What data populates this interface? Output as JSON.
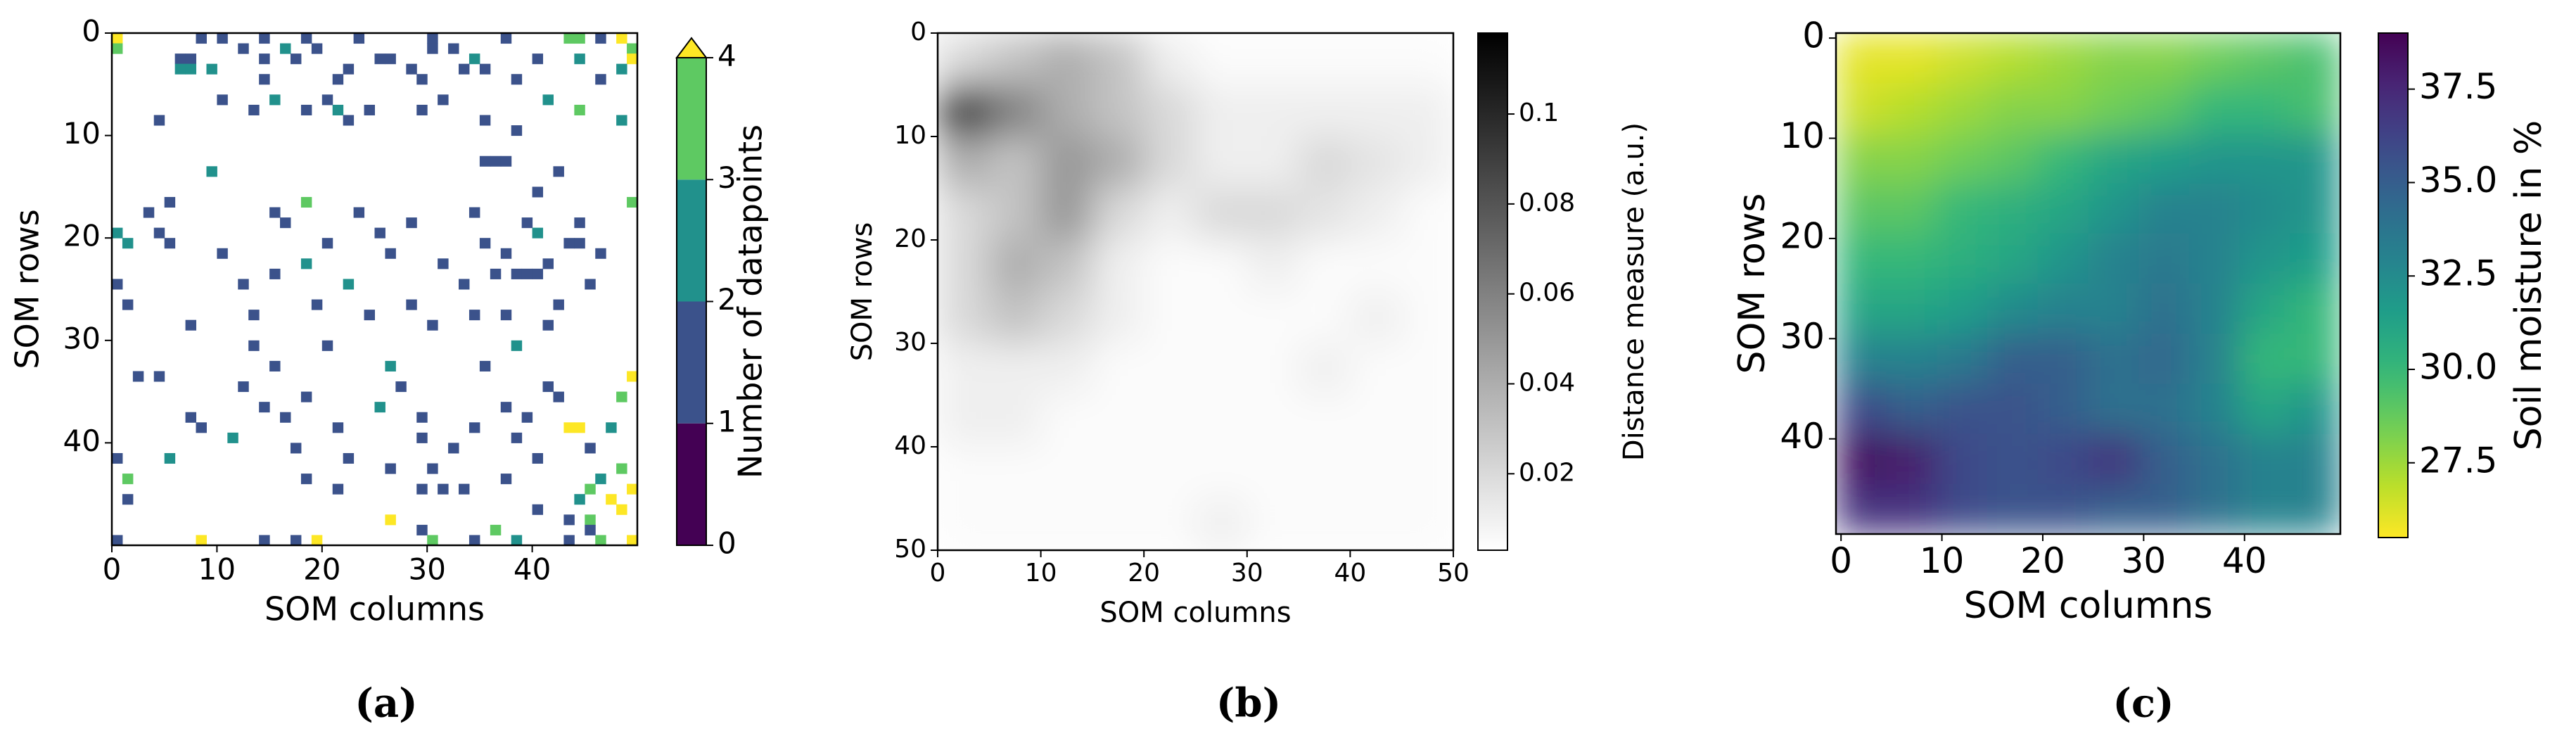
{
  "chart_data": [
    {
      "type": "heatmap-count",
      "caption": "(a)",
      "xlabel": "SOM columns",
      "ylabel": "SOM rows",
      "clabel": "Number of datapoints",
      "xlim": [
        0,
        50
      ],
      "ylim": [
        50,
        0
      ],
      "xticks": [
        0,
        10,
        20,
        30,
        40
      ],
      "yticks": [
        0,
        10,
        20,
        30,
        40
      ],
      "clim": [
        0,
        4
      ],
      "cticks": [
        0,
        1,
        2,
        3,
        4
      ],
      "colors": [
        "#440154",
        "#3b528b",
        "#21918c",
        "#5ec962",
        "#fde725"
      ],
      "cells": [
        [
          0,
          0,
          4
        ],
        [
          0,
          8,
          1
        ],
        [
          0,
          10,
          1
        ],
        [
          0,
          14,
          1
        ],
        [
          0,
          18,
          1
        ],
        [
          0,
          23,
          1
        ],
        [
          0,
          30,
          1
        ],
        [
          0,
          37,
          1
        ],
        [
          0,
          43,
          3
        ],
        [
          0,
          44,
          3
        ],
        [
          0,
          46,
          1
        ],
        [
          0,
          48,
          4
        ],
        [
          1,
          0,
          3
        ],
        [
          1,
          12,
          1
        ],
        [
          1,
          16,
          2
        ],
        [
          1,
          19,
          1
        ],
        [
          1,
          30,
          1
        ],
        [
          1,
          32,
          1
        ],
        [
          1,
          49,
          3
        ],
        [
          2,
          6,
          1
        ],
        [
          2,
          7,
          1
        ],
        [
          2,
          14,
          1
        ],
        [
          2,
          17,
          1
        ],
        [
          2,
          25,
          1
        ],
        [
          2,
          26,
          1
        ],
        [
          2,
          34,
          2
        ],
        [
          2,
          40,
          1
        ],
        [
          2,
          44,
          2
        ],
        [
          2,
          49,
          4
        ],
        [
          3,
          6,
          2
        ],
        [
          3,
          7,
          2
        ],
        [
          3,
          9,
          2
        ],
        [
          3,
          22,
          1
        ],
        [
          3,
          28,
          1
        ],
        [
          3,
          33,
          1
        ],
        [
          3,
          35,
          1
        ],
        [
          3,
          48,
          2
        ],
        [
          4,
          14,
          1
        ],
        [
          4,
          21,
          1
        ],
        [
          4,
          29,
          1
        ],
        [
          4,
          38,
          1
        ],
        [
          4,
          46,
          1
        ],
        [
          6,
          10,
          1
        ],
        [
          6,
          15,
          2
        ],
        [
          6,
          20,
          1
        ],
        [
          6,
          31,
          1
        ],
        [
          6,
          41,
          2
        ],
        [
          7,
          13,
          1
        ],
        [
          7,
          18,
          1
        ],
        [
          7,
          21,
          2
        ],
        [
          7,
          24,
          1
        ],
        [
          7,
          29,
          1
        ],
        [
          7,
          44,
          3
        ],
        [
          8,
          4,
          1
        ],
        [
          8,
          22,
          1
        ],
        [
          8,
          35,
          1
        ],
        [
          8,
          48,
          2
        ],
        [
          9,
          38,
          1
        ],
        [
          12,
          35,
          1
        ],
        [
          12,
          36,
          1
        ],
        [
          12,
          37,
          1
        ],
        [
          13,
          9,
          2
        ],
        [
          13,
          42,
          1
        ],
        [
          15,
          40,
          1
        ],
        [
          16,
          5,
          1
        ],
        [
          16,
          18,
          3
        ],
        [
          16,
          49,
          3
        ],
        [
          17,
          3,
          1
        ],
        [
          17,
          15,
          1
        ],
        [
          17,
          23,
          1
        ],
        [
          17,
          34,
          1
        ],
        [
          18,
          16,
          1
        ],
        [
          18,
          28,
          1
        ],
        [
          18,
          39,
          1
        ],
        [
          18,
          44,
          1
        ],
        [
          19,
          0,
          2
        ],
        [
          19,
          4,
          1
        ],
        [
          19,
          25,
          1
        ],
        [
          19,
          40,
          2
        ],
        [
          20,
          1,
          2
        ],
        [
          20,
          5,
          1
        ],
        [
          20,
          20,
          1
        ],
        [
          20,
          35,
          1
        ],
        [
          20,
          43,
          1
        ],
        [
          20,
          44,
          1
        ],
        [
          21,
          10,
          1
        ],
        [
          21,
          26,
          1
        ],
        [
          21,
          37,
          1
        ],
        [
          21,
          46,
          1
        ],
        [
          22,
          18,
          2
        ],
        [
          22,
          31,
          1
        ],
        [
          22,
          41,
          1
        ],
        [
          23,
          15,
          1
        ],
        [
          23,
          36,
          1
        ],
        [
          23,
          38,
          1
        ],
        [
          23,
          39,
          1
        ],
        [
          23,
          40,
          1
        ],
        [
          24,
          0,
          1
        ],
        [
          24,
          12,
          1
        ],
        [
          24,
          22,
          2
        ],
        [
          24,
          33,
          1
        ],
        [
          24,
          45,
          1
        ],
        [
          26,
          1,
          1
        ],
        [
          26,
          19,
          1
        ],
        [
          26,
          28,
          1
        ],
        [
          26,
          42,
          1
        ],
        [
          27,
          13,
          1
        ],
        [
          27,
          24,
          1
        ],
        [
          27,
          34,
          1
        ],
        [
          27,
          37,
          1
        ],
        [
          28,
          7,
          1
        ],
        [
          28,
          30,
          1
        ],
        [
          28,
          41,
          1
        ],
        [
          30,
          13,
          1
        ],
        [
          30,
          20,
          1
        ],
        [
          30,
          38,
          2
        ],
        [
          32,
          15,
          1
        ],
        [
          32,
          26,
          2
        ],
        [
          32,
          35,
          1
        ],
        [
          33,
          2,
          1
        ],
        [
          33,
          4,
          1
        ],
        [
          33,
          49,
          4
        ],
        [
          34,
          12,
          1
        ],
        [
          34,
          27,
          1
        ],
        [
          34,
          41,
          1
        ],
        [
          35,
          18,
          1
        ],
        [
          35,
          42,
          1
        ],
        [
          35,
          48,
          3
        ],
        [
          36,
          14,
          1
        ],
        [
          36,
          25,
          2
        ],
        [
          36,
          37,
          1
        ],
        [
          37,
          7,
          1
        ],
        [
          37,
          16,
          1
        ],
        [
          37,
          29,
          1
        ],
        [
          37,
          39,
          1
        ],
        [
          38,
          8,
          1
        ],
        [
          38,
          21,
          1
        ],
        [
          38,
          34,
          1
        ],
        [
          38,
          43,
          4
        ],
        [
          38,
          44,
          4
        ],
        [
          38,
          47,
          2
        ],
        [
          39,
          11,
          2
        ],
        [
          39,
          29,
          1
        ],
        [
          39,
          38,
          1
        ],
        [
          40,
          17,
          1
        ],
        [
          40,
          32,
          1
        ],
        [
          40,
          45,
          1
        ],
        [
          41,
          0,
          1
        ],
        [
          41,
          5,
          2
        ],
        [
          41,
          22,
          1
        ],
        [
          41,
          40,
          1
        ],
        [
          42,
          26,
          1
        ],
        [
          42,
          30,
          1
        ],
        [
          42,
          48,
          3
        ],
        [
          43,
          1,
          3
        ],
        [
          43,
          18,
          1
        ],
        [
          43,
          37,
          1
        ],
        [
          43,
          46,
          2
        ],
        [
          44,
          21,
          1
        ],
        [
          44,
          29,
          1
        ],
        [
          44,
          31,
          1
        ],
        [
          44,
          33,
          1
        ],
        [
          44,
          45,
          3
        ],
        [
          44,
          49,
          4
        ],
        [
          45,
          1,
          1
        ],
        [
          45,
          44,
          2
        ],
        [
          45,
          47,
          4
        ],
        [
          46,
          40,
          1
        ],
        [
          46,
          48,
          4
        ],
        [
          47,
          26,
          4
        ],
        [
          47,
          43,
          1
        ],
        [
          47,
          45,
          3
        ],
        [
          48,
          29,
          1
        ],
        [
          48,
          36,
          3
        ],
        [
          48,
          45,
          1
        ],
        [
          49,
          0,
          1
        ],
        [
          49,
          8,
          4
        ],
        [
          49,
          14,
          1
        ],
        [
          49,
          17,
          1
        ],
        [
          49,
          19,
          4
        ],
        [
          49,
          30,
          3
        ],
        [
          49,
          34,
          1
        ],
        [
          49,
          38,
          2
        ],
        [
          49,
          43,
          1
        ],
        [
          49,
          46,
          3
        ],
        [
          49,
          49,
          4
        ]
      ]
    },
    {
      "type": "heatmap",
      "caption": "(b)",
      "xlabel": "SOM columns",
      "ylabel": "SOM rows",
      "clabel": "Distance measure (a.u.)",
      "colormap": "gray_r",
      "xlim": [
        0,
        50
      ],
      "ylim": [
        50,
        0
      ],
      "xticks": [
        0,
        10,
        20,
        30,
        40,
        50
      ],
      "yticks": [
        0,
        10,
        20,
        30,
        40,
        50
      ],
      "clim": [
        0.003,
        0.118
      ],
      "cticks": [
        0.02,
        0.04,
        0.06,
        0.08,
        0.1
      ],
      "z": [
        [
          0.02,
          0.03,
          0.04,
          0.03,
          0.01,
          0.005,
          0.005,
          0.005,
          0.005,
          0.005
        ],
        [
          0.09,
          0.06,
          0.04,
          0.03,
          0.02,
          0.01,
          0.01,
          0.01,
          0.01,
          0.01
        ],
        [
          0.04,
          0.03,
          0.05,
          0.04,
          0.02,
          0.01,
          0.01,
          0.02,
          0.015,
          0.01
        ],
        [
          0.02,
          0.03,
          0.05,
          0.02,
          0.01,
          0.02,
          0.02,
          0.015,
          0.01,
          0.005
        ],
        [
          0.02,
          0.04,
          0.03,
          0.01,
          0.005,
          0.005,
          0.01,
          0.005,
          0.005,
          0.005
        ],
        [
          0.02,
          0.03,
          0.02,
          0.01,
          0.005,
          0.005,
          0.005,
          0.005,
          0.01,
          0.005
        ],
        [
          0.01,
          0.01,
          0.01,
          0.005,
          0.005,
          0.005,
          0.005,
          0.01,
          0.005,
          0.005
        ],
        [
          0.01,
          0.01,
          0.005,
          0.005,
          0.005,
          0.005,
          0.005,
          0.005,
          0.005,
          0.005
        ],
        [
          0.005,
          0.005,
          0.005,
          0.005,
          0.005,
          0.005,
          0.005,
          0.005,
          0.005,
          0.005
        ],
        [
          0.005,
          0.005,
          0.005,
          0.005,
          0.005,
          0.01,
          0.005,
          0.005,
          0.005,
          0.005
        ]
      ]
    },
    {
      "type": "heatmap",
      "caption": "(c)",
      "xlabel": "SOM columns",
      "ylabel": "SOM rows",
      "clabel": "Soil moisture in %",
      "colormap": "viridis_r",
      "xlim": [
        -0.5,
        49.5
      ],
      "ylim": [
        49.5,
        -0.5
      ],
      "xticks": [
        0,
        10,
        20,
        30,
        40
      ],
      "yticks": [
        0,
        10,
        20,
        30,
        40
      ],
      "clim": [
        25.5,
        39
      ],
      "cticks": [
        27.5,
        {
          "value": 30,
          "label": "30.0"
        },
        32.5,
        {
          "value": 35,
          "label": "35.0"
        },
        37.5
      ],
      "z": [
        [
          26,
          26,
          26.5,
          27,
          27.5,
          28,
          28,
          28.5,
          29,
          29.5
        ],
        [
          26.5,
          27,
          27.5,
          28,
          28,
          28.5,
          29,
          30,
          30,
          29.5
        ],
        [
          28,
          28,
          28.5,
          29,
          30,
          31,
          31.5,
          32,
          32,
          32
        ],
        [
          29,
          29,
          30,
          30.5,
          31,
          32,
          33,
          33,
          32.5,
          32
        ],
        [
          30,
          30,
          30.5,
          31,
          32,
          33,
          33.5,
          33,
          32,
          31.5
        ],
        [
          31,
          31,
          31.5,
          32.5,
          33,
          33,
          34,
          33,
          31,
          30
        ],
        [
          33,
          33,
          33.5,
          35,
          35,
          34,
          34.5,
          33,
          30,
          30
        ],
        [
          36,
          35,
          35.5,
          35.5,
          35,
          34,
          34,
          33,
          31,
          32
        ],
        [
          38.5,
          38,
          36,
          35.5,
          36,
          37,
          35,
          34,
          33,
          33
        ],
        [
          37,
          37,
          36,
          35.5,
          35.5,
          35,
          35,
          34,
          33,
          33
        ]
      ]
    }
  ]
}
